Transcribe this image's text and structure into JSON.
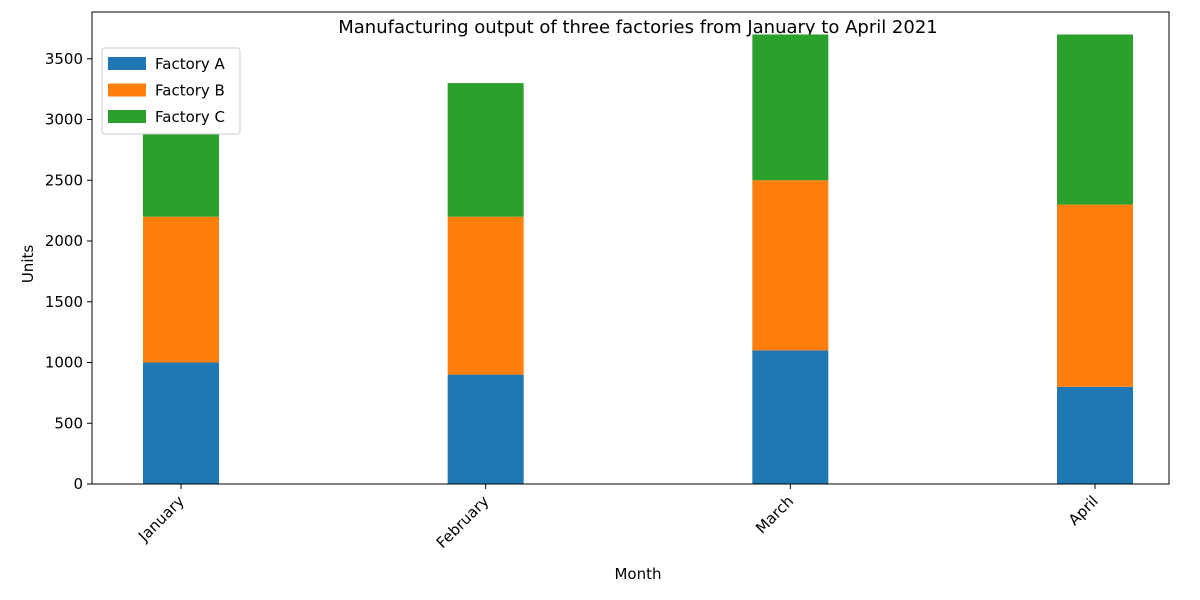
{
  "chart_data": {
    "type": "bar",
    "stacked": true,
    "title": "Manufacturing output of three factories from January to April 2021",
    "xlabel": "Month",
    "ylabel": "Units",
    "categories": [
      "January",
      "February",
      "March",
      "April"
    ],
    "series": [
      {
        "name": "Factory A",
        "color": "#1f77b4",
        "values": [
          1000,
          900,
          1100,
          800
        ]
      },
      {
        "name": "Factory B",
        "color": "#ff7f0e",
        "values": [
          1200,
          1300,
          1400,
          1500
        ]
      },
      {
        "name": "Factory C",
        "color": "#2ca02c",
        "values": [
          800,
          1100,
          1200,
          1400
        ]
      }
    ],
    "ylim": [
      0,
      3885
    ],
    "yticks": [
      0,
      500,
      1000,
      1500,
      2000,
      2500,
      3000,
      3500
    ],
    "grid": false,
    "legend_position": "top-left"
  }
}
